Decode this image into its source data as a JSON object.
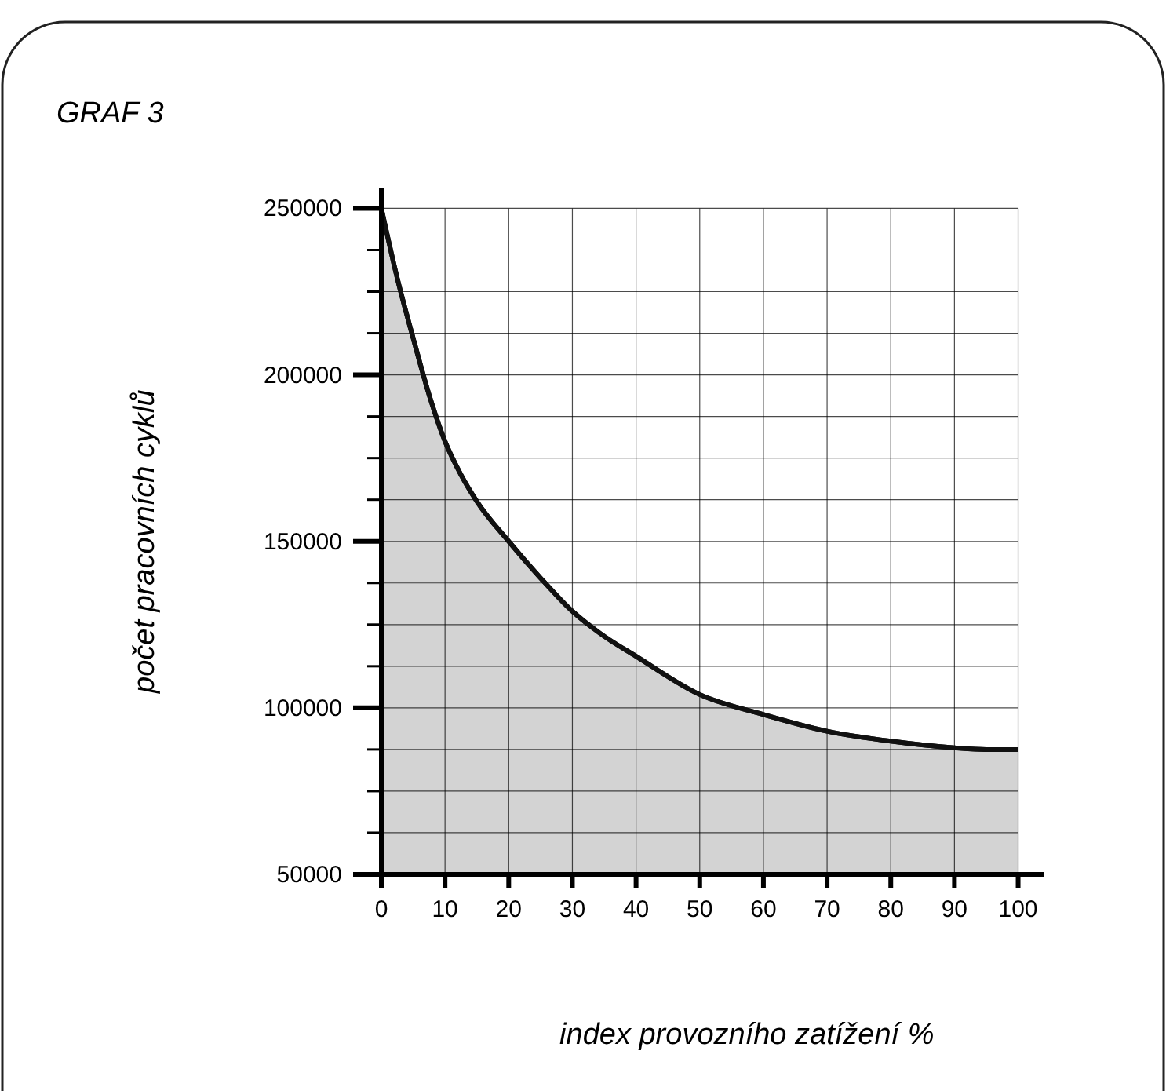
{
  "chart_data": {
    "type": "area",
    "title": "GRAF 3",
    "xlabel": "index provozního zatížení %",
    "ylabel": "počet pracovních cyklů",
    "x": [
      0,
      2.5,
      5,
      7.5,
      10,
      12.5,
      15,
      20,
      25,
      30,
      35,
      40,
      50,
      60,
      70,
      80,
      90,
      95,
      100
    ],
    "series": [
      {
        "color": "#d3d3d3",
        "values": [
          250000,
          229000,
          211000,
          194000,
          180000,
          170000,
          162000,
          150000,
          139000,
          129000,
          121500,
          115500,
          104000,
          98000,
          93000,
          90000,
          88000,
          87500,
          87500
        ]
      }
    ],
    "xlim": [
      0,
      104
    ],
    "ylim": [
      50000,
      256000
    ],
    "xticks": [
      0,
      10,
      20,
      30,
      40,
      50,
      60,
      70,
      80,
      90,
      100
    ],
    "yticks": [
      50000,
      {
        "value": 62500,
        "label": null
      },
      {
        "value": 75000,
        "label": null
      },
      {
        "value": 87500,
        "label": null
      },
      100000,
      {
        "value": 112500,
        "label": null
      },
      {
        "value": 125000,
        "label": null
      },
      {
        "value": 137500,
        "label": null
      },
      150000,
      {
        "value": 162500,
        "label": null
      },
      {
        "value": 175000,
        "label": null
      },
      {
        "value": 187500,
        "label": null
      },
      200000,
      {
        "value": 212500,
        "label": null
      },
      {
        "value": 225000,
        "label": null
      },
      {
        "value": 237500,
        "label": null
      },
      250000
    ],
    "grid": true
  }
}
